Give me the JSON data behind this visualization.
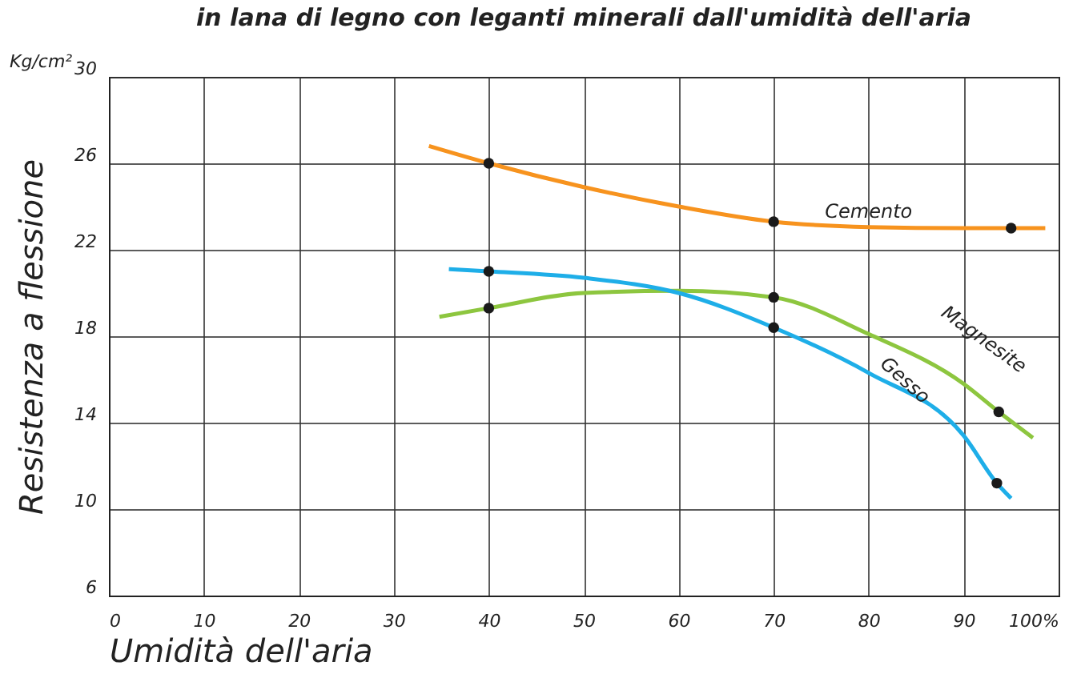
{
  "chart_data": {
    "type": "line",
    "title": "in lana di legno con leganti minerali dall'umidità dell'aria",
    "xlabel": "Umidità dell'aria",
    "ylabel": "Resistenza a flessione",
    "annotations": [
      "Kg/cm²"
    ],
    "xlim": [
      0,
      100
    ],
    "xticks": [
      0,
      10,
      20,
      30,
      40,
      50,
      60,
      70,
      80,
      90,
      {
        "value": 100,
        "label": "100%"
      }
    ],
    "ylim": [
      6,
      30
    ],
    "yticks": [
      6,
      10,
      14,
      18,
      22,
      26,
      30
    ],
    "grid": true,
    "legend": false,
    "series": [
      {
        "name": "Cemento",
        "color": "#f7931e",
        "marker": "none",
        "x": [
          33.7,
          40,
          50,
          60,
          70,
          80,
          90,
          95,
          98.6
        ],
        "values": [
          26.8,
          26,
          24.9,
          24,
          23.3,
          23.05,
          23,
          23,
          23
        ]
      },
      {
        "name": "Magnesite",
        "color": "#8dc63f",
        "marker": "none",
        "x": [
          34.8,
          40,
          50,
          60,
          70,
          80,
          90,
          93.7,
          97.3
        ],
        "values": [
          18.9,
          19.3,
          20,
          20.1,
          19.8,
          18.1,
          15.8,
          14.5,
          13.3
        ]
      },
      {
        "name": "Gesso",
        "color": "#1eaee8",
        "marker": "none",
        "x": [
          35.8,
          40,
          50,
          60,
          70,
          80,
          90,
          93.5,
          95
        ],
        "values": [
          21.1,
          21,
          20.7,
          20,
          18.4,
          16.3,
          13.4,
          11.2,
          10.5
        ]
      },
      {
        "color": "#1a1a1a",
        "type": "scatter",
        "marker": "circle",
        "x": [
          40,
          70,
          95,
          40,
          70,
          93.7,
          40,
          70,
          93.5
        ],
        "values": [
          26,
          23.3,
          23,
          19.3,
          19.8,
          14.5,
          21,
          18.4,
          11.2
        ]
      }
    ]
  }
}
